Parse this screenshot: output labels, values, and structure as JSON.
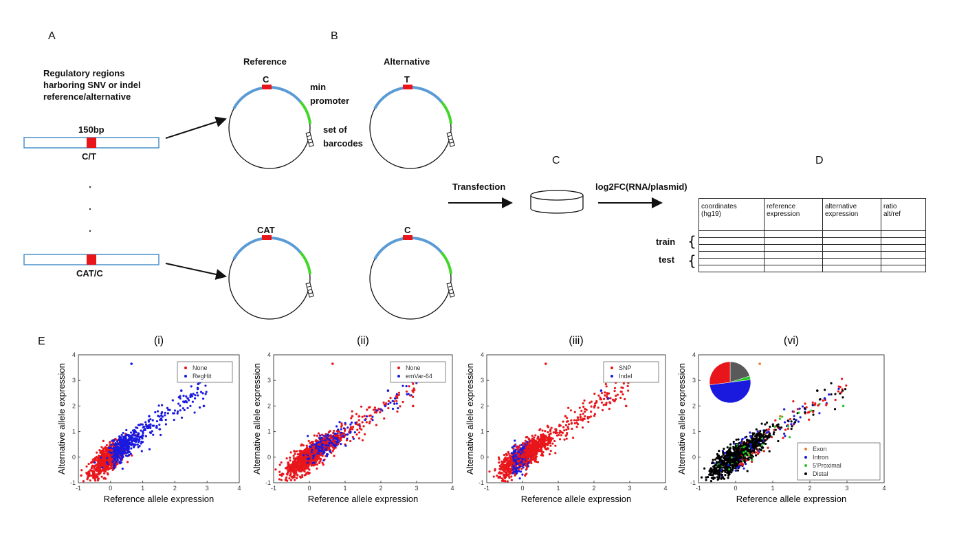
{
  "panels": {
    "A": "A",
    "B": "B",
    "C": "C",
    "D": "D",
    "E": "E"
  },
  "panel_a": {
    "description_lines": [
      "Regulatory regions",
      "harboring SNV or indel",
      "reference/alternative"
    ],
    "fragment_length": "150bp",
    "top_alleles": "C/T",
    "bottom_alleles": "CAT/C"
  },
  "panel_b": {
    "reference_label": "Reference",
    "alternative_label": "Alternative",
    "min_promoter_lines": [
      "min",
      "promoter"
    ],
    "barcodes_lines": [
      "set of",
      "barcodes"
    ],
    "ref_top_base": "C",
    "alt_top_base": "T",
    "ref_bottom_base": "CAT",
    "alt_bottom_base": "C"
  },
  "panel_c": {
    "transfection": "Transfection",
    "measure": "log2FC(RNA/plasmid)"
  },
  "panel_d": {
    "headers": [
      [
        "coordinates",
        "(hg19)"
      ],
      [
        "reference",
        "expression"
      ],
      [
        "alternative",
        "expression"
      ],
      [
        "ratio",
        "alt/ref"
      ]
    ],
    "train": "train",
    "test": "test"
  },
  "colors": {
    "red": "#e8161b",
    "blue": "#1a1adf",
    "plasmid_blue": "#5b9bd5",
    "plasmid_green": "#43d62a",
    "region_border": "#4a90c8",
    "green_dot": "#29c629",
    "black": "#000000",
    "orange": "#f07a24",
    "gray": "#595959"
  },
  "chart_data": [
    {
      "type": "scatter",
      "title": "(i)",
      "xlabel": "Reference allele expression",
      "ylabel": "Alternative allele expression",
      "xlim": [
        -1,
        4
      ],
      "ylim": [
        -1,
        4
      ],
      "xticks": [
        "-1",
        "0",
        "1",
        "2",
        "3",
        "4"
      ],
      "yticks": [
        "-1",
        "0",
        "1",
        "2",
        "3",
        "4"
      ],
      "legend": {
        "position": "top-right",
        "entries": [
          "None",
          "RegHit"
        ]
      },
      "series": [
        {
          "name": "None",
          "color": "#e8161b"
        },
        {
          "name": "RegHit",
          "color": "#1a1adf"
        }
      ]
    },
    {
      "type": "scatter",
      "title": "(ii)",
      "xlabel": "Reference allele expression",
      "ylabel": "Alternative allele expression",
      "xlim": [
        -1,
        4
      ],
      "ylim": [
        -1,
        4
      ],
      "xticks": [
        "-1",
        "0",
        "1",
        "2",
        "3",
        "4"
      ],
      "yticks": [
        "-1",
        "0",
        "1",
        "2",
        "3",
        "4"
      ],
      "legend": {
        "position": "top-right",
        "entries": [
          "None",
          "emVar-64"
        ]
      },
      "series": [
        {
          "name": "None",
          "color": "#e8161b"
        },
        {
          "name": "emVar-64",
          "color": "#1a1adf"
        }
      ]
    },
    {
      "type": "scatter",
      "title": "(iii)",
      "xlabel": "Reference allele expression",
      "ylabel": "Alternative allele expression",
      "xlim": [
        -1,
        4
      ],
      "ylim": [
        -1,
        4
      ],
      "xticks": [
        "-1",
        "0",
        "1",
        "2",
        "3",
        "4"
      ],
      "yticks": [
        "-1",
        "0",
        "1",
        "2",
        "3",
        "4"
      ],
      "legend": {
        "position": "top-right",
        "entries": [
          "SNP",
          "Indel"
        ]
      },
      "series": [
        {
          "name": "SNP",
          "color": "#e8161b"
        },
        {
          "name": "Indel",
          "color": "#1a1adf"
        }
      ]
    },
    {
      "type": "scatter",
      "title": "(vi)",
      "xlabel": "Reference allele expression",
      "ylabel": "Alternative allele expression",
      "xlim": [
        -1,
        4
      ],
      "ylim": [
        -1,
        4
      ],
      "xticks": [
        "-1",
        "0",
        "1",
        "2",
        "3",
        "4"
      ],
      "yticks": [
        "-1",
        "0",
        "1",
        "2",
        "3",
        "4"
      ],
      "legend": {
        "position": "bottom-right",
        "entries": [
          "Exon",
          "Intron",
          "5'Proximal",
          "Distal"
        ]
      },
      "series": [
        {
          "name": "Exon",
          "color": "#f07a24"
        },
        {
          "name": "Intron",
          "color": "#1a1adf"
        },
        {
          "name": "5'Proximal",
          "color": "#29c629"
        },
        {
          "name": "Distal",
          "color": "#000000"
        }
      ],
      "inset_pie": {
        "slices": [
          {
            "label": "Distal",
            "value": 0.2,
            "color": "#595959"
          },
          {
            "label": "5'Proximal",
            "value": 0.03,
            "color": "#29c629"
          },
          {
            "label": "Intron",
            "value": 0.5,
            "color": "#1a1adf"
          },
          {
            "label": "Exon",
            "value": 0.27,
            "color": "#e8161b"
          }
        ]
      }
    }
  ]
}
